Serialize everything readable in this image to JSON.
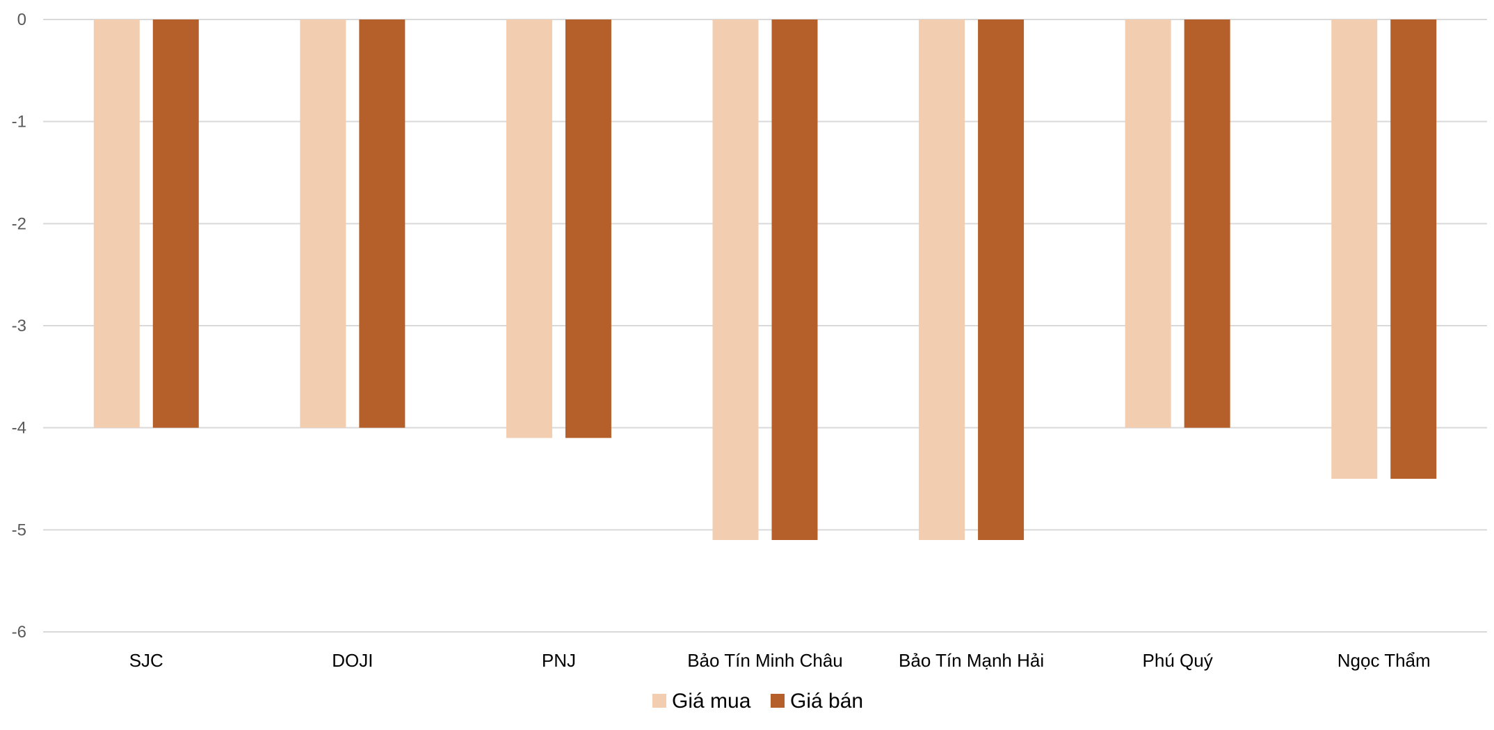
{
  "chart_data": {
    "type": "bar",
    "title": "",
    "xlabel": "",
    "ylabel": "",
    "categories": [
      "SJC",
      "DOJI",
      "PNJ",
      "Bảo Tín Minh Châu",
      "Bảo Tín Mạnh Hải",
      "Phú Quý",
      "Ngọc Thẩm"
    ],
    "series": [
      {
        "name": "Giá mua",
        "color": "#F2CDB0",
        "values": [
          -4,
          -4,
          -4.1,
          -5.1,
          -5.1,
          -4,
          -4.5
        ]
      },
      {
        "name": "Giá bán",
        "color": "#B5602A",
        "values": [
          -4,
          -4,
          -4.1,
          -5.1,
          -5.1,
          -4,
          -4.5
        ]
      }
    ],
    "ylim": [
      -6,
      0
    ],
    "yticks": [
      "0",
      "-1",
      "-2",
      "-3",
      "-4",
      "-5",
      "-6"
    ],
    "grid": true,
    "gridColor": "#D9D9D9",
    "legend": "bottom-center"
  }
}
